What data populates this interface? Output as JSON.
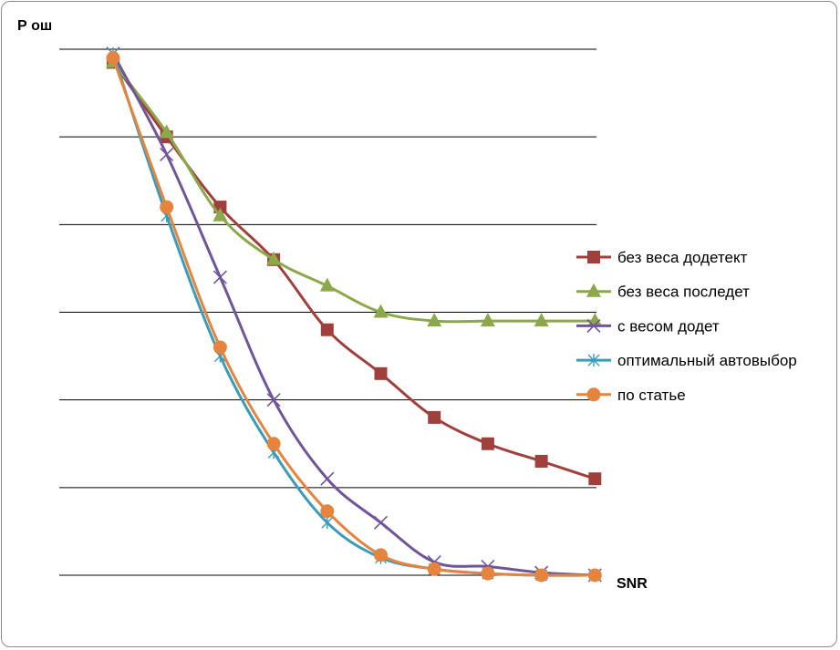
{
  "chart_data": {
    "type": "line",
    "ylabel": "Р ош",
    "xlabel": "SNR",
    "x": [
      1,
      2,
      3,
      4,
      5,
      6,
      7,
      8,
      9,
      10
    ],
    "ylim": [
      0,
      6
    ],
    "grid": true,
    "legend_position": "right",
    "series": [
      {
        "name": "без веса додетект",
        "color": "#A0403D",
        "marker": "square",
        "values": [
          5.85,
          5.0,
          4.2,
          3.6,
          2.8,
          2.3,
          1.8,
          1.5,
          1.3,
          1.1
        ]
      },
      {
        "name": "без веса последет",
        "color": "#8CA84A",
        "marker": "triangle",
        "values": [
          5.85,
          5.05,
          4.1,
          3.6,
          3.3,
          3.0,
          2.9,
          2.9,
          2.9,
          2.9
        ]
      },
      {
        "name": "с весом додет",
        "color": "#6F559A",
        "marker": "x",
        "values": [
          5.95,
          4.8,
          3.4,
          2.0,
          1.1,
          0.6,
          0.15,
          0.1,
          0.03,
          0.0
        ]
      },
      {
        "name": "оптимальный автовыбор",
        "color": "#3A9CB8",
        "marker": "asterisk",
        "values": [
          5.95,
          4.1,
          2.5,
          1.4,
          0.6,
          0.2,
          0.07,
          0.02,
          0.0,
          0.0
        ]
      },
      {
        "name": "по статье",
        "color": "#E5843F",
        "marker": "circle",
        "values": [
          5.9,
          4.2,
          2.6,
          1.5,
          0.73,
          0.23,
          0.07,
          0.02,
          0.0,
          0.0
        ]
      }
    ]
  }
}
